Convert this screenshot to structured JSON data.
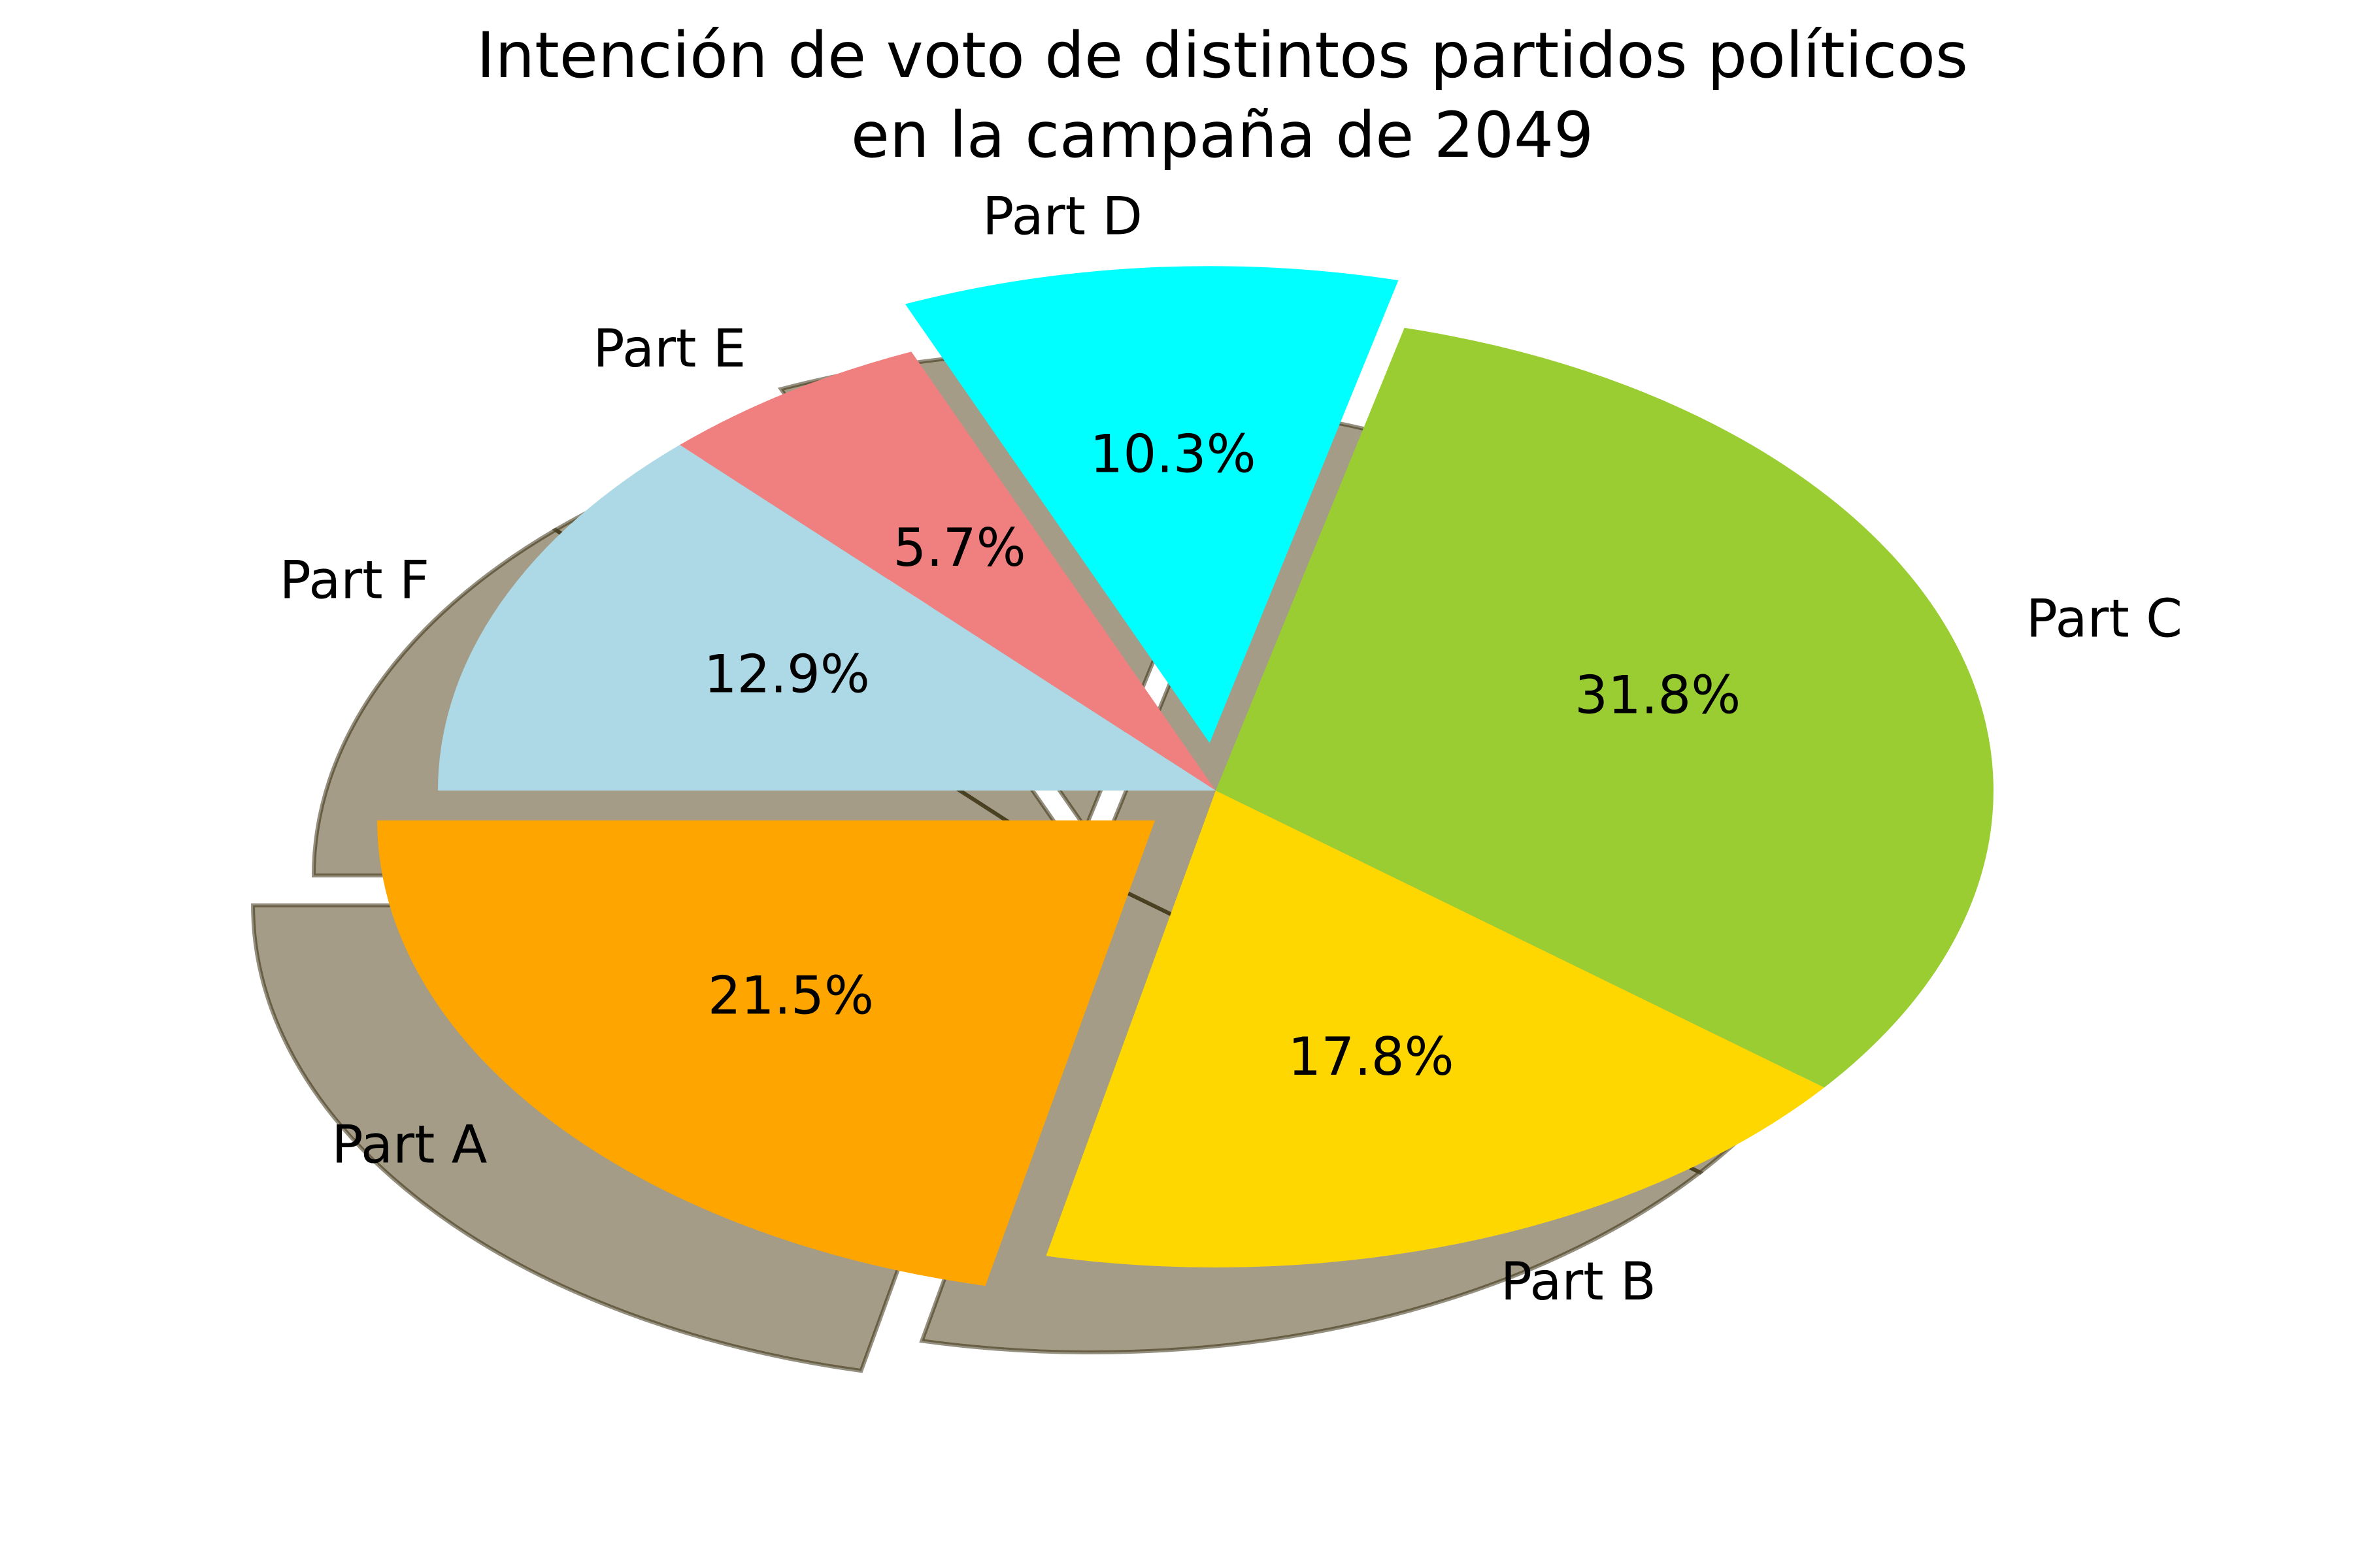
{
  "chart_data": {
    "type": "pie",
    "title": [
      "Intención de voto de distintos partidos políticos",
      "en la campaña de 2049"
    ],
    "categories": [
      "Part A",
      "Part B",
      "Part C",
      "Part D",
      "Part E",
      "Part F"
    ],
    "values": [
      21.5,
      17.8,
      31.8,
      10.3,
      5.7,
      12.9
    ],
    "value_labels": [
      "21.5%",
      "17.8%",
      "31.8%",
      "10.3%",
      "5.7%",
      "12.9%"
    ],
    "colors": [
      "#ffa500",
      "#ffd700",
      "#9acd32",
      "#00ffff",
      "#f08080",
      "#add8e6"
    ],
    "exploded": [
      "Part A",
      "Part D"
    ],
    "shadow": true,
    "legend": "none"
  }
}
